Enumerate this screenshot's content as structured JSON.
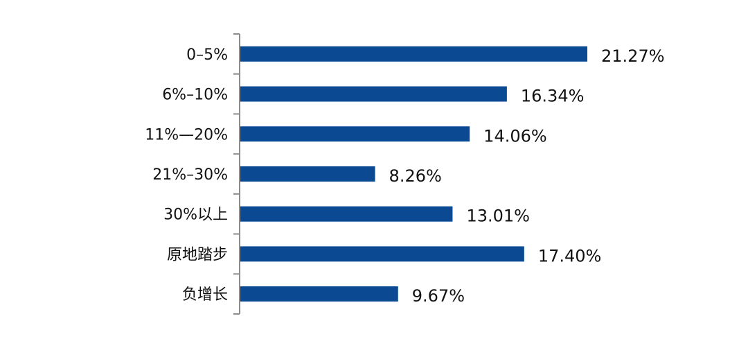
{
  "chart_data": {
    "type": "bar",
    "orientation": "horizontal",
    "categories": [
      "0–5%",
      "6%–10%",
      "11%—20%",
      "21%–30%",
      "30%以上",
      "原地踏步",
      "负增长"
    ],
    "values": [
      21.27,
      16.34,
      14.06,
      8.26,
      13.01,
      17.4,
      9.67
    ],
    "data_labels": [
      "21.27%",
      "16.34%",
      "14.06%",
      "8.26%",
      "13.01%",
      "17.40%",
      "9.67%"
    ],
    "title": "",
    "xlabel": "",
    "ylabel": "",
    "xlim": [
      0,
      25
    ],
    "grid": false,
    "legend": "none",
    "bar_color": "#0b4a93",
    "axis_color": "#8c8c8c"
  }
}
